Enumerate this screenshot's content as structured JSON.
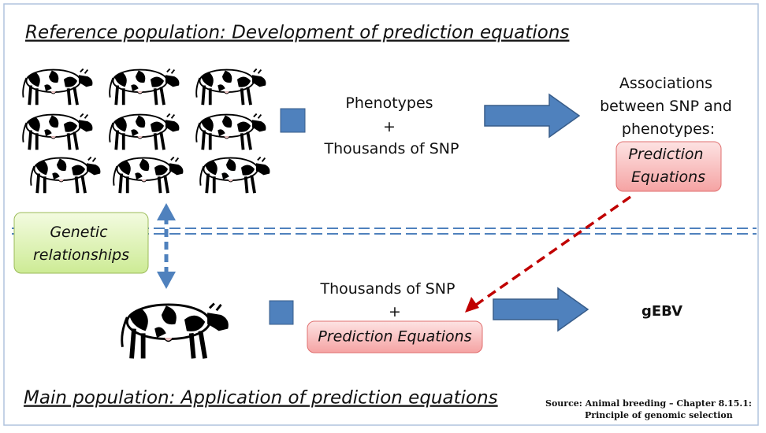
{
  "reference_title": "Reference population: Development of prediction equations",
  "main_title": "Main population: Application of prediction equations",
  "reference_input": [
    "Phenotypes",
    "+",
    "Thousands of SNP"
  ],
  "associations": {
    "lines": [
      "Associations",
      "between SNP and",
      "phenotypes:"
    ],
    "box": [
      "Prediction",
      "Equations"
    ]
  },
  "genetic_relationships": [
    "Genetic",
    "relationships"
  ],
  "main_input": {
    "lines": [
      "Thousands of SNP",
      "+"
    ],
    "box": "Prediction Equations"
  },
  "output": "gEBV",
  "source": [
    "Source: Animal breeding  – Chapter 8.15.1:",
    "Principle of genomic selection"
  ]
}
